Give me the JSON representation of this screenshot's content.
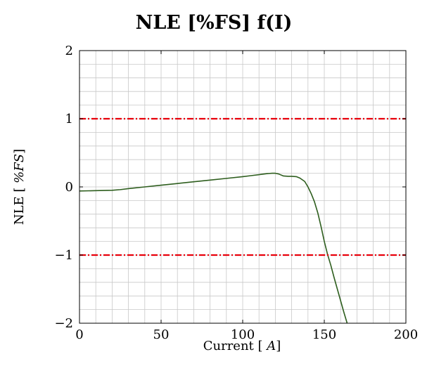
{
  "chart_data": {
    "type": "line",
    "title": "NLE [%FS] f(I)",
    "xlabel": "Current [A]",
    "ylabel": "NLE [%FS]",
    "xlim": [
      0,
      200
    ],
    "ylim": [
      -2,
      2
    ],
    "xticks": [
      "0",
      "50",
      "100",
      "150",
      "200"
    ],
    "yticks": [
      "−2",
      "−1",
      "0",
      "1",
      "2"
    ],
    "grid": true,
    "series": [
      {
        "color": "#2e5e1e",
        "style": "solid",
        "x": [
          0,
          10,
          20,
          25,
          30,
          40,
          50,
          60,
          70,
          80,
          90,
          100,
          105,
          110,
          115,
          118,
          120,
          122,
          125,
          128,
          130,
          133,
          135,
          138,
          140,
          142,
          144,
          146,
          148,
          150,
          152,
          154,
          156,
          158,
          160,
          162,
          164
        ],
        "y": [
          -0.06,
          -0.055,
          -0.05,
          -0.04,
          -0.025,
          0.0,
          0.025,
          0.05,
          0.075,
          0.1,
          0.125,
          0.15,
          0.165,
          0.18,
          0.195,
          0.2,
          0.2,
          0.19,
          0.16,
          0.155,
          0.155,
          0.15,
          0.13,
          0.08,
          0.0,
          -0.1,
          -0.22,
          -0.38,
          -0.58,
          -0.8,
          -0.99,
          -1.15,
          -1.33,
          -1.5,
          -1.67,
          -1.84,
          -2.0
        ]
      },
      {
        "color": "#e8000b",
        "style": "dashdot",
        "x": [
          0,
          200
        ],
        "y": [
          1,
          1
        ]
      },
      {
        "color": "#e8000b",
        "style": "dashdot",
        "x": [
          0,
          200
        ],
        "y": [
          -1,
          -1
        ]
      }
    ]
  }
}
